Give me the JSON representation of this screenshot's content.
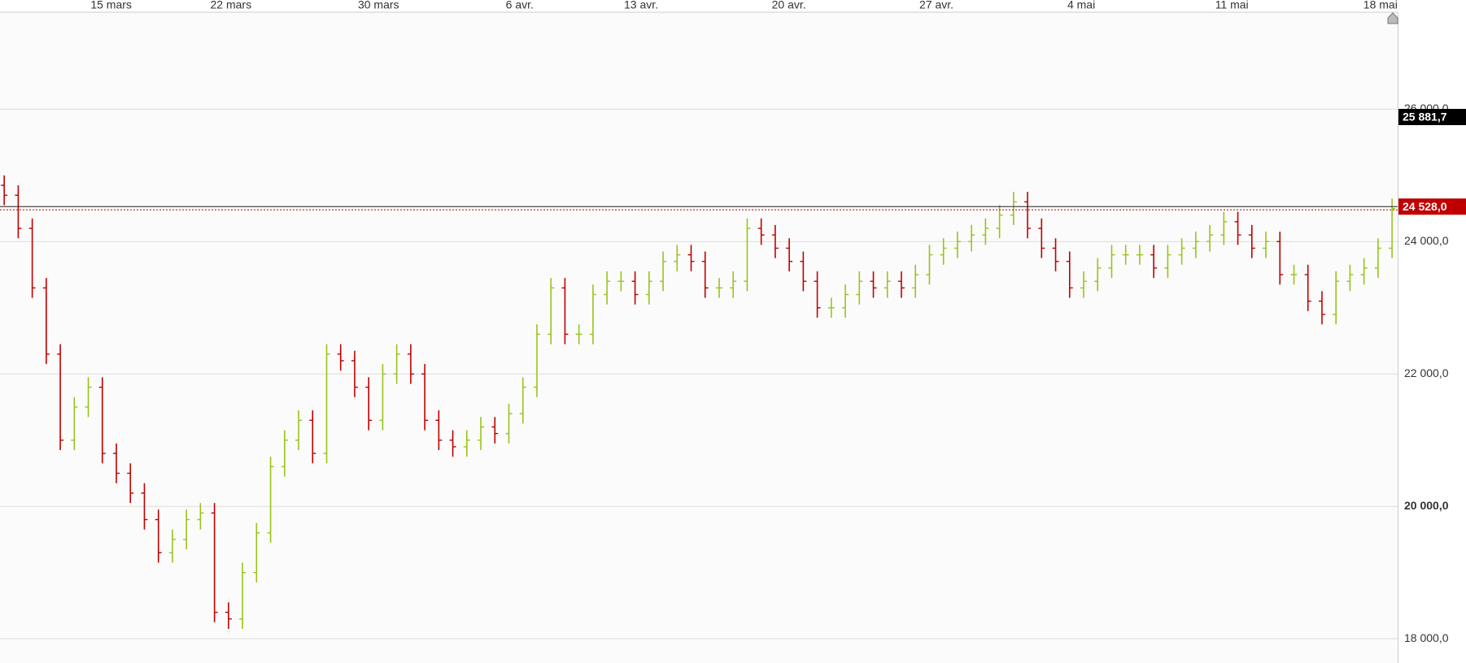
{
  "chart_data": {
    "type": "ohlc",
    "x": [
      0,
      1,
      2,
      3,
      4,
      5,
      6,
      7,
      8,
      9,
      10,
      11,
      12,
      13,
      14,
      15,
      16,
      17,
      18,
      19,
      20,
      21,
      22,
      23,
      24,
      25,
      26,
      27,
      28,
      29,
      30,
      31,
      32,
      33,
      34,
      35,
      36,
      37,
      38,
      39,
      40,
      41,
      42,
      43,
      44,
      45,
      46,
      47,
      48,
      49,
      50,
      51,
      52,
      53,
      54,
      55,
      56,
      57,
      58,
      59,
      60,
      61,
      62,
      63,
      64,
      65,
      66,
      67,
      68,
      69,
      70,
      71,
      72,
      73,
      74,
      75,
      76,
      77,
      78,
      79,
      80,
      81,
      82,
      83,
      84,
      85,
      86,
      87,
      88,
      89,
      90,
      91,
      92,
      93,
      94,
      95,
      96,
      97,
      98,
      99
    ],
    "open": [
      24850,
      24700,
      24200,
      23300,
      22300,
      21000,
      21500,
      21800,
      20800,
      20500,
      20200,
      19800,
      19300,
      19500,
      19800,
      19900,
      18400,
      18300,
      19000,
      19600,
      20600,
      21000,
      21300,
      20800,
      22300,
      22200,
      21800,
      21300,
      22000,
      22300,
      22000,
      21300,
      21000,
      20900,
      21000,
      21200,
      21100,
      21400,
      21800,
      22600,
      23300,
      22600,
      22600,
      23200,
      23400,
      23400,
      23200,
      23400,
      23700,
      23800,
      23700,
      23300,
      23300,
      23400,
      24200,
      24100,
      23900,
      23700,
      23400,
      23000,
      23000,
      23200,
      23400,
      23300,
      23400,
      23300,
      23500,
      23800,
      23900,
      24000,
      24100,
      24200,
      24400,
      24600,
      24200,
      23900,
      23700,
      23300,
      23400,
      23600,
      23800,
      23800,
      23800,
      23600,
      23800,
      23900,
      24000,
      24100,
      24300,
      24100,
      23900,
      24000,
      23500,
      23500,
      23100,
      22900,
      23400,
      23500,
      23600,
      23900
    ],
    "high": [
      25000,
      24850,
      24350,
      23450,
      22450,
      21650,
      21950,
      21950,
      20950,
      20650,
      20350,
      19950,
      19650,
      19950,
      20050,
      20050,
      18550,
      19150,
      19750,
      20750,
      21150,
      21450,
      21450,
      22450,
      22450,
      22350,
      21950,
      22150,
      22450,
      22450,
      22150,
      21450,
      21150,
      21150,
      21350,
      21350,
      21550,
      21950,
      22750,
      23450,
      23450,
      22750,
      23350,
      23550,
      23550,
      23550,
      23550,
      23850,
      23950,
      23950,
      23850,
      23450,
      23550,
      24350,
      24350,
      24250,
      24050,
      23850,
      23550,
      23150,
      23350,
      23550,
      23550,
      23550,
      23550,
      23650,
      23950,
      24050,
      24150,
      24250,
      24350,
      24550,
      24750,
      24750,
      24350,
      24050,
      23850,
      23550,
      23750,
      23950,
      23950,
      23950,
      23950,
      23950,
      24050,
      24150,
      24250,
      24450,
      24450,
      24250,
      24150,
      24150,
      23650,
      23650,
      23250,
      23550,
      23650,
      23750,
      24050,
      24650
    ],
    "low": [
      24550,
      24050,
      23150,
      22150,
      20850,
      20850,
      21350,
      20650,
      20350,
      20050,
      19650,
      19150,
      19150,
      19350,
      19650,
      18250,
      18150,
      18150,
      18850,
      19450,
      20450,
      20850,
      20650,
      20650,
      22050,
      21650,
      21150,
      21150,
      21850,
      21850,
      21150,
      20850,
      20750,
      20750,
      20850,
      20950,
      20950,
      21250,
      21650,
      22450,
      22450,
      22450,
      22450,
      23050,
      23250,
      23050,
      23050,
      23250,
      23550,
      23550,
      23150,
      23150,
      23150,
      23250,
      23950,
      23750,
      23550,
      23250,
      22850,
      22850,
      22850,
      23050,
      23150,
      23150,
      23150,
      23150,
      23350,
      23650,
      23750,
      23850,
      23950,
      24050,
      24250,
      24050,
      23750,
      23550,
      23150,
      23150,
      23250,
      23450,
      23650,
      23650,
      23450,
      23450,
      23650,
      23750,
      23850,
      23950,
      23950,
      23750,
      23750,
      23350,
      23350,
      22950,
      22750,
      22750,
      23250,
      23350,
      23450,
      23750
    ],
    "close": [
      24700,
      24200,
      23300,
      22300,
      21000,
      21500,
      21800,
      20800,
      20500,
      20200,
      19800,
      19300,
      19500,
      19800,
      19900,
      18400,
      18300,
      19000,
      19600,
      20600,
      21000,
      21300,
      20800,
      22300,
      22200,
      21800,
      21300,
      22000,
      22300,
      22000,
      21300,
      21000,
      20900,
      21000,
      21200,
      21100,
      21400,
      21800,
      22600,
      23300,
      22600,
      22600,
      23200,
      23400,
      23400,
      23200,
      23400,
      23700,
      23800,
      23700,
      23300,
      23300,
      23400,
      24200,
      24100,
      23900,
      23700,
      23400,
      23000,
      23000,
      23200,
      23400,
      23300,
      23400,
      23300,
      23500,
      23800,
      23900,
      24000,
      24100,
      24200,
      24400,
      24600,
      24200,
      23900,
      23700,
      23300,
      23400,
      23600,
      23800,
      23800,
      23800,
      23600,
      23800,
      23900,
      24000,
      24100,
      24300,
      24100,
      23900,
      24000,
      23500,
      23500,
      23100,
      22900,
      23400,
      23500,
      23600,
      23900,
      24500
    ],
    "up_color": "#9ac31c",
    "down_color": "#c00000",
    "xlim": [
      -0.3,
      99.4
    ],
    "xticks": [
      {
        "value": 7.63,
        "label": "15 mars"
      },
      {
        "value": 16.17,
        "label": "22 mars"
      },
      {
        "value": 26.7,
        "label": "30 mars"
      },
      {
        "value": 36.77,
        "label": "6 avr."
      },
      {
        "value": 45.43,
        "label": "13 avr."
      },
      {
        "value": 55.97,
        "label": "20 avr."
      },
      {
        "value": 66.5,
        "label": "27 avr."
      },
      {
        "value": 76.83,
        "label": "4 mai"
      },
      {
        "value": 87.57,
        "label": "11 mai"
      },
      {
        "value": 98.17,
        "label": "18 mai"
      }
    ],
    "ylim": [
      17634,
      27465
    ],
    "yticks": [
      {
        "value": 18000,
        "label": "18 000,0"
      },
      {
        "value": 20000,
        "label": "20 000,0",
        "bold": true
      },
      {
        "value": 22000,
        "label": "22 000,0"
      },
      {
        "value": 24000,
        "label": "24 000,0"
      },
      {
        "value": 26000,
        "label": "26 000,0"
      }
    ],
    "grid": true,
    "markers": [
      {
        "value": 25881.7,
        "label": "25 881,7",
        "color": "#000000"
      },
      {
        "value": 24528.0,
        "label": "24 528,0",
        "color": "#c00000"
      }
    ]
  }
}
